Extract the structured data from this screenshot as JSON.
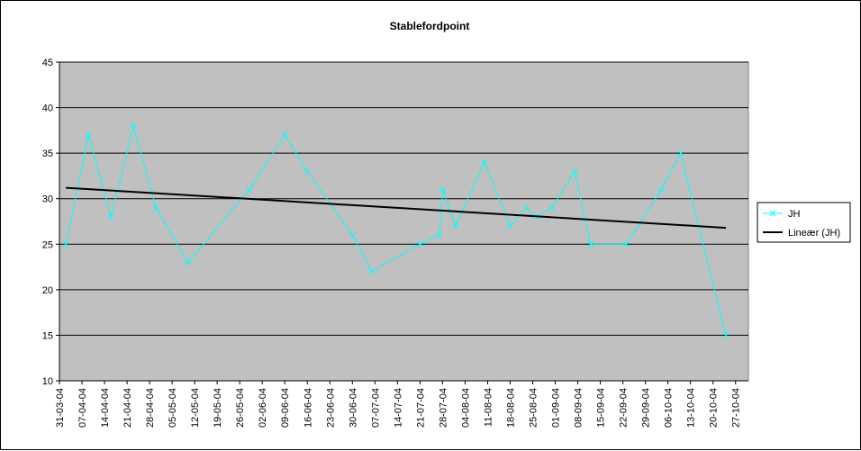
{
  "chart_data": {
    "type": "line",
    "title": "Stablefordpoint",
    "xlabel": "",
    "ylabel": "",
    "ylim": [
      10,
      45
    ],
    "yticks": [
      10,
      15,
      20,
      25,
      30,
      35,
      40,
      45
    ],
    "xlim": [
      "31-03-04",
      "31-10-04"
    ],
    "xticks": [
      "31-03-04",
      "07-04-04",
      "14-04-04",
      "21-04-04",
      "28-04-04",
      "05-05-04",
      "12-05-04",
      "19-05-04",
      "26-05-04",
      "02-06-04",
      "09-06-04",
      "16-06-04",
      "23-06-04",
      "30-06-04",
      "07-07-04",
      "14-07-04",
      "21-07-04",
      "28-07-04",
      "04-08-04",
      "11-08-04",
      "18-08-04",
      "25-08-04",
      "01-09-04",
      "08-09-04",
      "15-09-04",
      "22-09-04",
      "29-09-04",
      "06-10-04",
      "13-10-04",
      "20-10-04",
      "27-10-04"
    ],
    "grid": "horizontal",
    "legend_position": "right",
    "plot_background": "#C0C0C0",
    "series": [
      {
        "name": "JH",
        "color": "#00FFFF",
        "marker": "x",
        "x": [
          "02-04-04",
          "09-04-04",
          "16-04-04",
          "23-04-04",
          "30-04-04",
          "10-05-04",
          "29-05-04",
          "09-06-04",
          "16-06-04",
          "30-06-04",
          "06-07-04",
          "21-07-04",
          "27-07-04",
          "28-07-04",
          "01-08-04",
          "10-08-04",
          "18-08-04",
          "23-08-04",
          "26-08-04",
          "31-08-04",
          "07-09-04",
          "12-09-04",
          "23-09-04",
          "04-10-04",
          "10-10-04",
          "24-10-04"
        ],
        "values": [
          25,
          37,
          28,
          38,
          29,
          23,
          31,
          37,
          33,
          26,
          22,
          25,
          26,
          31,
          27,
          34,
          27,
          29,
          28,
          29,
          33,
          25,
          25,
          31,
          35,
          15
        ]
      },
      {
        "name": "Lineær (JH)",
        "color": "#000000",
        "marker": "none",
        "x": [
          "02-04-04",
          "24-10-04"
        ],
        "values": [
          31.2,
          26.8
        ]
      }
    ]
  }
}
